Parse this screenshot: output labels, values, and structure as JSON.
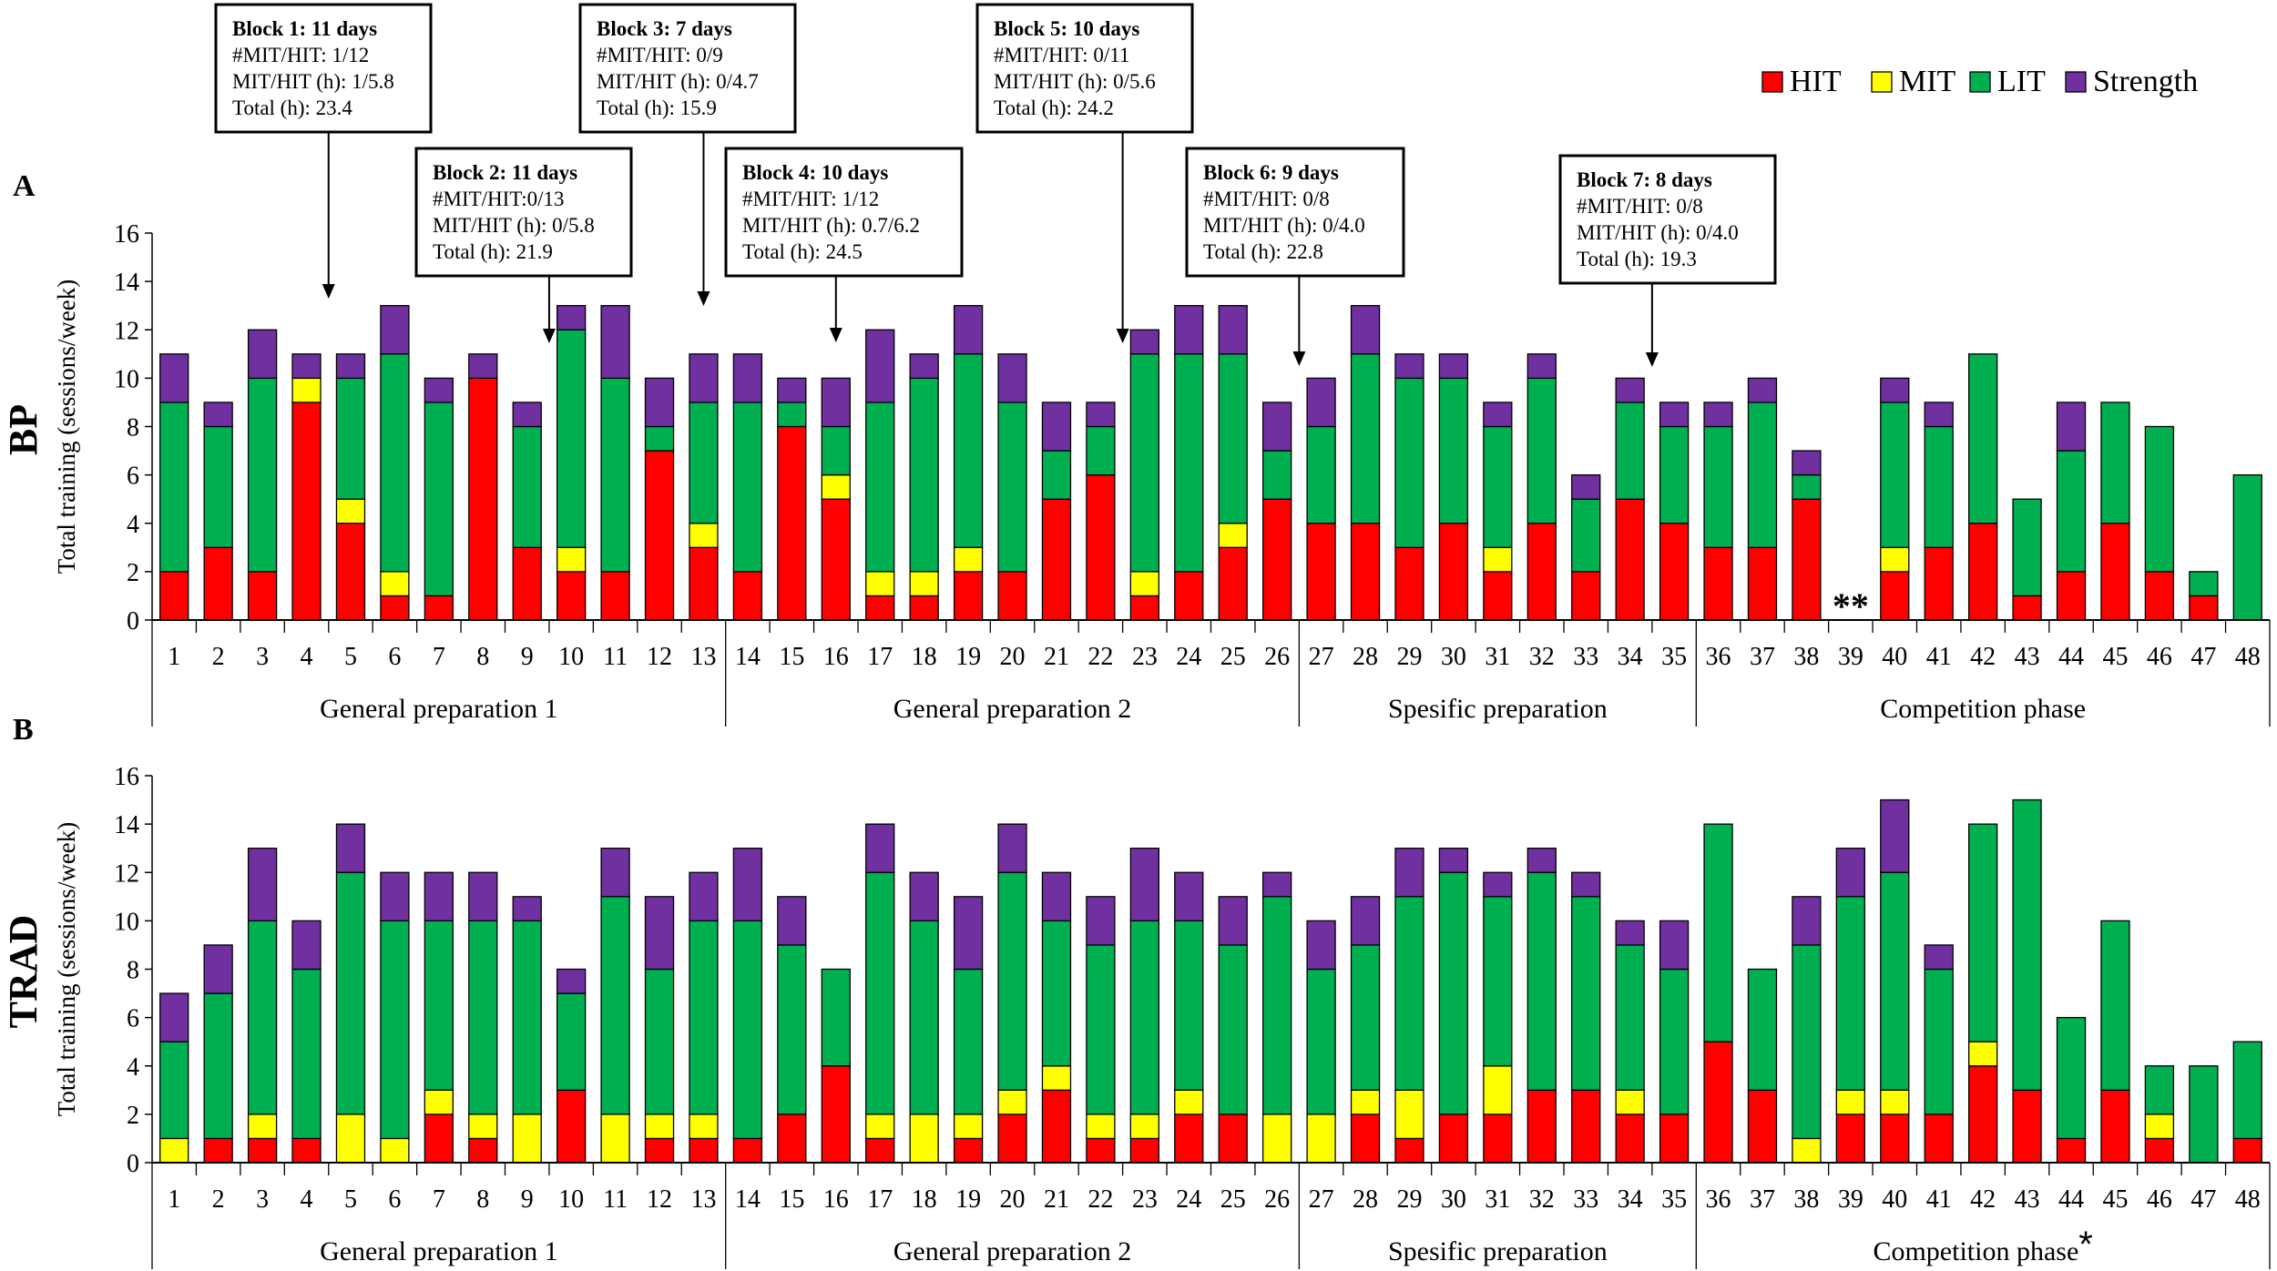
{
  "colors": {
    "HIT": "#ff0000",
    "MIT": "#ffff00",
    "LIT": "#00b050",
    "Strength": "#7030a0"
  },
  "legend": [
    {
      "key": "HIT",
      "label": "HIT"
    },
    {
      "key": "MIT",
      "label": "MIT"
    },
    {
      "key": "LIT",
      "label": "LIT"
    },
    {
      "key": "Strength",
      "label": "Strength"
    }
  ],
  "blocks": [
    {
      "title": "Block 1: 11 days",
      "lines": [
        "#MIT/HIT: 1/12",
        "MIT/HIT (h): 1/5.8",
        "Total (h): 23.4"
      ],
      "arrow_week": 4.5
    },
    {
      "title": "Block 2: 11 days",
      "lines": [
        "#MIT/HIT:0/13",
        "MIT/HIT (h): 0/5.8",
        "Total (h): 21.9"
      ],
      "arrow_week": 9.5
    },
    {
      "title": "Block 3: 7 days",
      "lines": [
        "#MIT/HIT: 0/9",
        "MIT/HIT (h): 0/4.7",
        "Total (h): 15.9"
      ],
      "arrow_week": 13.0
    },
    {
      "title": "Block 4: 10 days",
      "lines": [
        "#MIT/HIT: 1/12",
        "MIT/HIT (h): 0.7/6.2",
        "Total (h): 24.5"
      ],
      "arrow_week": 16.0
    },
    {
      "title": "Block 5: 10 days",
      "lines": [
        "#MIT/HIT: 0/11",
        "MIT/HIT (h): 0/5.6",
        "Total (h): 24.2"
      ],
      "arrow_week": 22.5
    },
    {
      "title": "Block 6: 9 days",
      "lines": [
        "#MIT/HIT: 0/8",
        "MIT/HIT (h): 0/4.0",
        "Total (h): 22.8"
      ],
      "arrow_week": 26.5
    },
    {
      "title": "Block 7: 8 days",
      "lines": [
        "#MIT/HIT: 0/8",
        "MIT/HIT (h): 0/4.0",
        "Total (h): 19.3"
      ],
      "arrow_week": 34.5
    }
  ],
  "chart_data": [
    {
      "type": "bar",
      "stacked": true,
      "panel_letter": "A",
      "group": "BP",
      "ylabel": "Total training (sessions/week)",
      "ylim": [
        0,
        16
      ],
      "yticks": [
        0,
        2,
        4,
        6,
        8,
        10,
        12,
        14,
        16
      ],
      "categories": [
        "1",
        "2",
        "3",
        "4",
        "5",
        "6",
        "7",
        "8",
        "9",
        "10",
        "11",
        "12",
        "13",
        "14",
        "15",
        "16",
        "17",
        "18",
        "19",
        "20",
        "21",
        "22",
        "23",
        "24",
        "25",
        "26",
        "27",
        "28",
        "29",
        "30",
        "31",
        "32",
        "33",
        "34",
        "35",
        "36",
        "37",
        "38",
        "39",
        "40",
        "41",
        "42",
        "43",
        "44",
        "45",
        "46",
        "47",
        "48"
      ],
      "series": [
        {
          "name": "HIT",
          "values": [
            2,
            3,
            2,
            9,
            4,
            1,
            1,
            10,
            3,
            2,
            2,
            7,
            3,
            2,
            8,
            5,
            1,
            1,
            2,
            2,
            5,
            6,
            1,
            2,
            3,
            5,
            4,
            4,
            3,
            4,
            2,
            4,
            2,
            5,
            4,
            3,
            3,
            5,
            0,
            2,
            3,
            4,
            1,
            2,
            4,
            2,
            1,
            0
          ]
        },
        {
          "name": "MIT",
          "values": [
            0,
            0,
            0,
            1,
            1,
            1,
            0,
            0,
            0,
            1,
            0,
            0,
            1,
            0,
            0,
            1,
            1,
            1,
            1,
            0,
            0,
            0,
            1,
            0,
            1,
            0,
            0,
            0,
            0,
            0,
            1,
            0,
            0,
            0,
            0,
            0,
            0,
            0,
            0,
            1,
            0,
            0,
            0,
            0,
            0,
            0,
            0,
            0
          ]
        },
        {
          "name": "LIT",
          "values": [
            7,
            5,
            8,
            0,
            5,
            9,
            8,
            0,
            5,
            9,
            8,
            1,
            5,
            7,
            1,
            2,
            7,
            8,
            8,
            7,
            2,
            2,
            9,
            9,
            7,
            2,
            4,
            7,
            7,
            6,
            5,
            6,
            3,
            4,
            4,
            5,
            6,
            1,
            0,
            6,
            5,
            7,
            4,
            5,
            5,
            6,
            1,
            6
          ]
        },
        {
          "name": "Strength",
          "values": [
            2,
            1,
            2,
            1,
            1,
            2,
            1,
            1,
            1,
            1,
            3,
            2,
            2,
            2,
            1,
            2,
            3,
            1,
            2,
            2,
            2,
            1,
            1,
            2,
            2,
            2,
            2,
            2,
            1,
            1,
            1,
            1,
            1,
            1,
            1,
            1,
            1,
            1,
            0,
            1,
            1,
            0,
            0,
            2,
            0,
            0,
            0,
            0
          ]
        }
      ],
      "annotations": [
        {
          "week": "39",
          "text": "**"
        }
      ],
      "phases": [
        {
          "label": "General preparation 1",
          "from": 1,
          "to": 13
        },
        {
          "label": "General preparation 2",
          "from": 14,
          "to": 26
        },
        {
          "label": "Spesific preparation",
          "from": 27,
          "to": 35
        },
        {
          "label": "Competition phase",
          "from": 36,
          "to": 48
        }
      ]
    },
    {
      "type": "bar",
      "stacked": true,
      "panel_letter": "B",
      "group": "TRAD",
      "ylabel": "Total training (sessions/week)",
      "ylim": [
        0,
        16
      ],
      "yticks": [
        0,
        2,
        4,
        6,
        8,
        10,
        12,
        14,
        16
      ],
      "categories": [
        "1",
        "2",
        "3",
        "4",
        "5",
        "6",
        "7",
        "8",
        "9",
        "10",
        "11",
        "12",
        "13",
        "14",
        "15",
        "16",
        "17",
        "18",
        "19",
        "20",
        "21",
        "22",
        "23",
        "24",
        "25",
        "26",
        "27",
        "28",
        "29",
        "30",
        "31",
        "32",
        "33",
        "34",
        "35",
        "36",
        "37",
        "38",
        "39",
        "40",
        "41",
        "42",
        "43",
        "44",
        "45",
        "46",
        "47",
        "48"
      ],
      "series": [
        {
          "name": "HIT",
          "values": [
            0,
            1,
            1,
            1,
            0,
            0,
            2,
            1,
            0,
            3,
            0,
            1,
            1,
            1,
            2,
            4,
            1,
            0,
            1,
            2,
            3,
            1,
            1,
            2,
            2,
            0,
            0,
            2,
            1,
            2,
            2,
            3,
            3,
            2,
            2,
            5,
            3,
            0,
            2,
            2,
            2,
            4,
            3,
            1,
            3,
            1,
            0,
            1
          ]
        },
        {
          "name": "MIT",
          "values": [
            1,
            0,
            1,
            0,
            2,
            1,
            1,
            1,
            2,
            0,
            2,
            1,
            1,
            0,
            0,
            0,
            1,
            2,
            1,
            1,
            1,
            1,
            1,
            1,
            0,
            2,
            2,
            1,
            2,
            0,
            2,
            0,
            0,
            1,
            0,
            0,
            0,
            1,
            1,
            1,
            0,
            1,
            0,
            0,
            0,
            1,
            0,
            0
          ]
        },
        {
          "name": "LIT",
          "values": [
            4,
            6,
            8,
            7,
            10,
            9,
            7,
            8,
            8,
            4,
            9,
            6,
            8,
            9,
            7,
            4,
            10,
            8,
            6,
            9,
            6,
            7,
            8,
            7,
            7,
            9,
            6,
            6,
            8,
            10,
            7,
            9,
            8,
            6,
            6,
            9,
            5,
            8,
            8,
            9,
            6,
            9,
            12,
            5,
            7,
            2,
            4,
            4
          ]
        },
        {
          "name": "Strength",
          "values": [
            2,
            2,
            3,
            2,
            2,
            2,
            2,
            2,
            1,
            1,
            2,
            3,
            2,
            3,
            2,
            0,
            2,
            2,
            3,
            2,
            2,
            2,
            3,
            2,
            2,
            1,
            2,
            2,
            2,
            1,
            1,
            1,
            1,
            1,
            2,
            0,
            0,
            2,
            2,
            3,
            1,
            0,
            0,
            0,
            0,
            0,
            0,
            0
          ]
        }
      ],
      "phases": [
        {
          "label": "General preparation 1",
          "from": 1,
          "to": 13
        },
        {
          "label": "General preparation 2",
          "from": 14,
          "to": 26
        },
        {
          "label": "Spesific preparation",
          "from": 27,
          "to": 35
        },
        {
          "label": "Competition phase",
          "from": 36,
          "to": 48,
          "marker": "*"
        }
      ]
    }
  ]
}
